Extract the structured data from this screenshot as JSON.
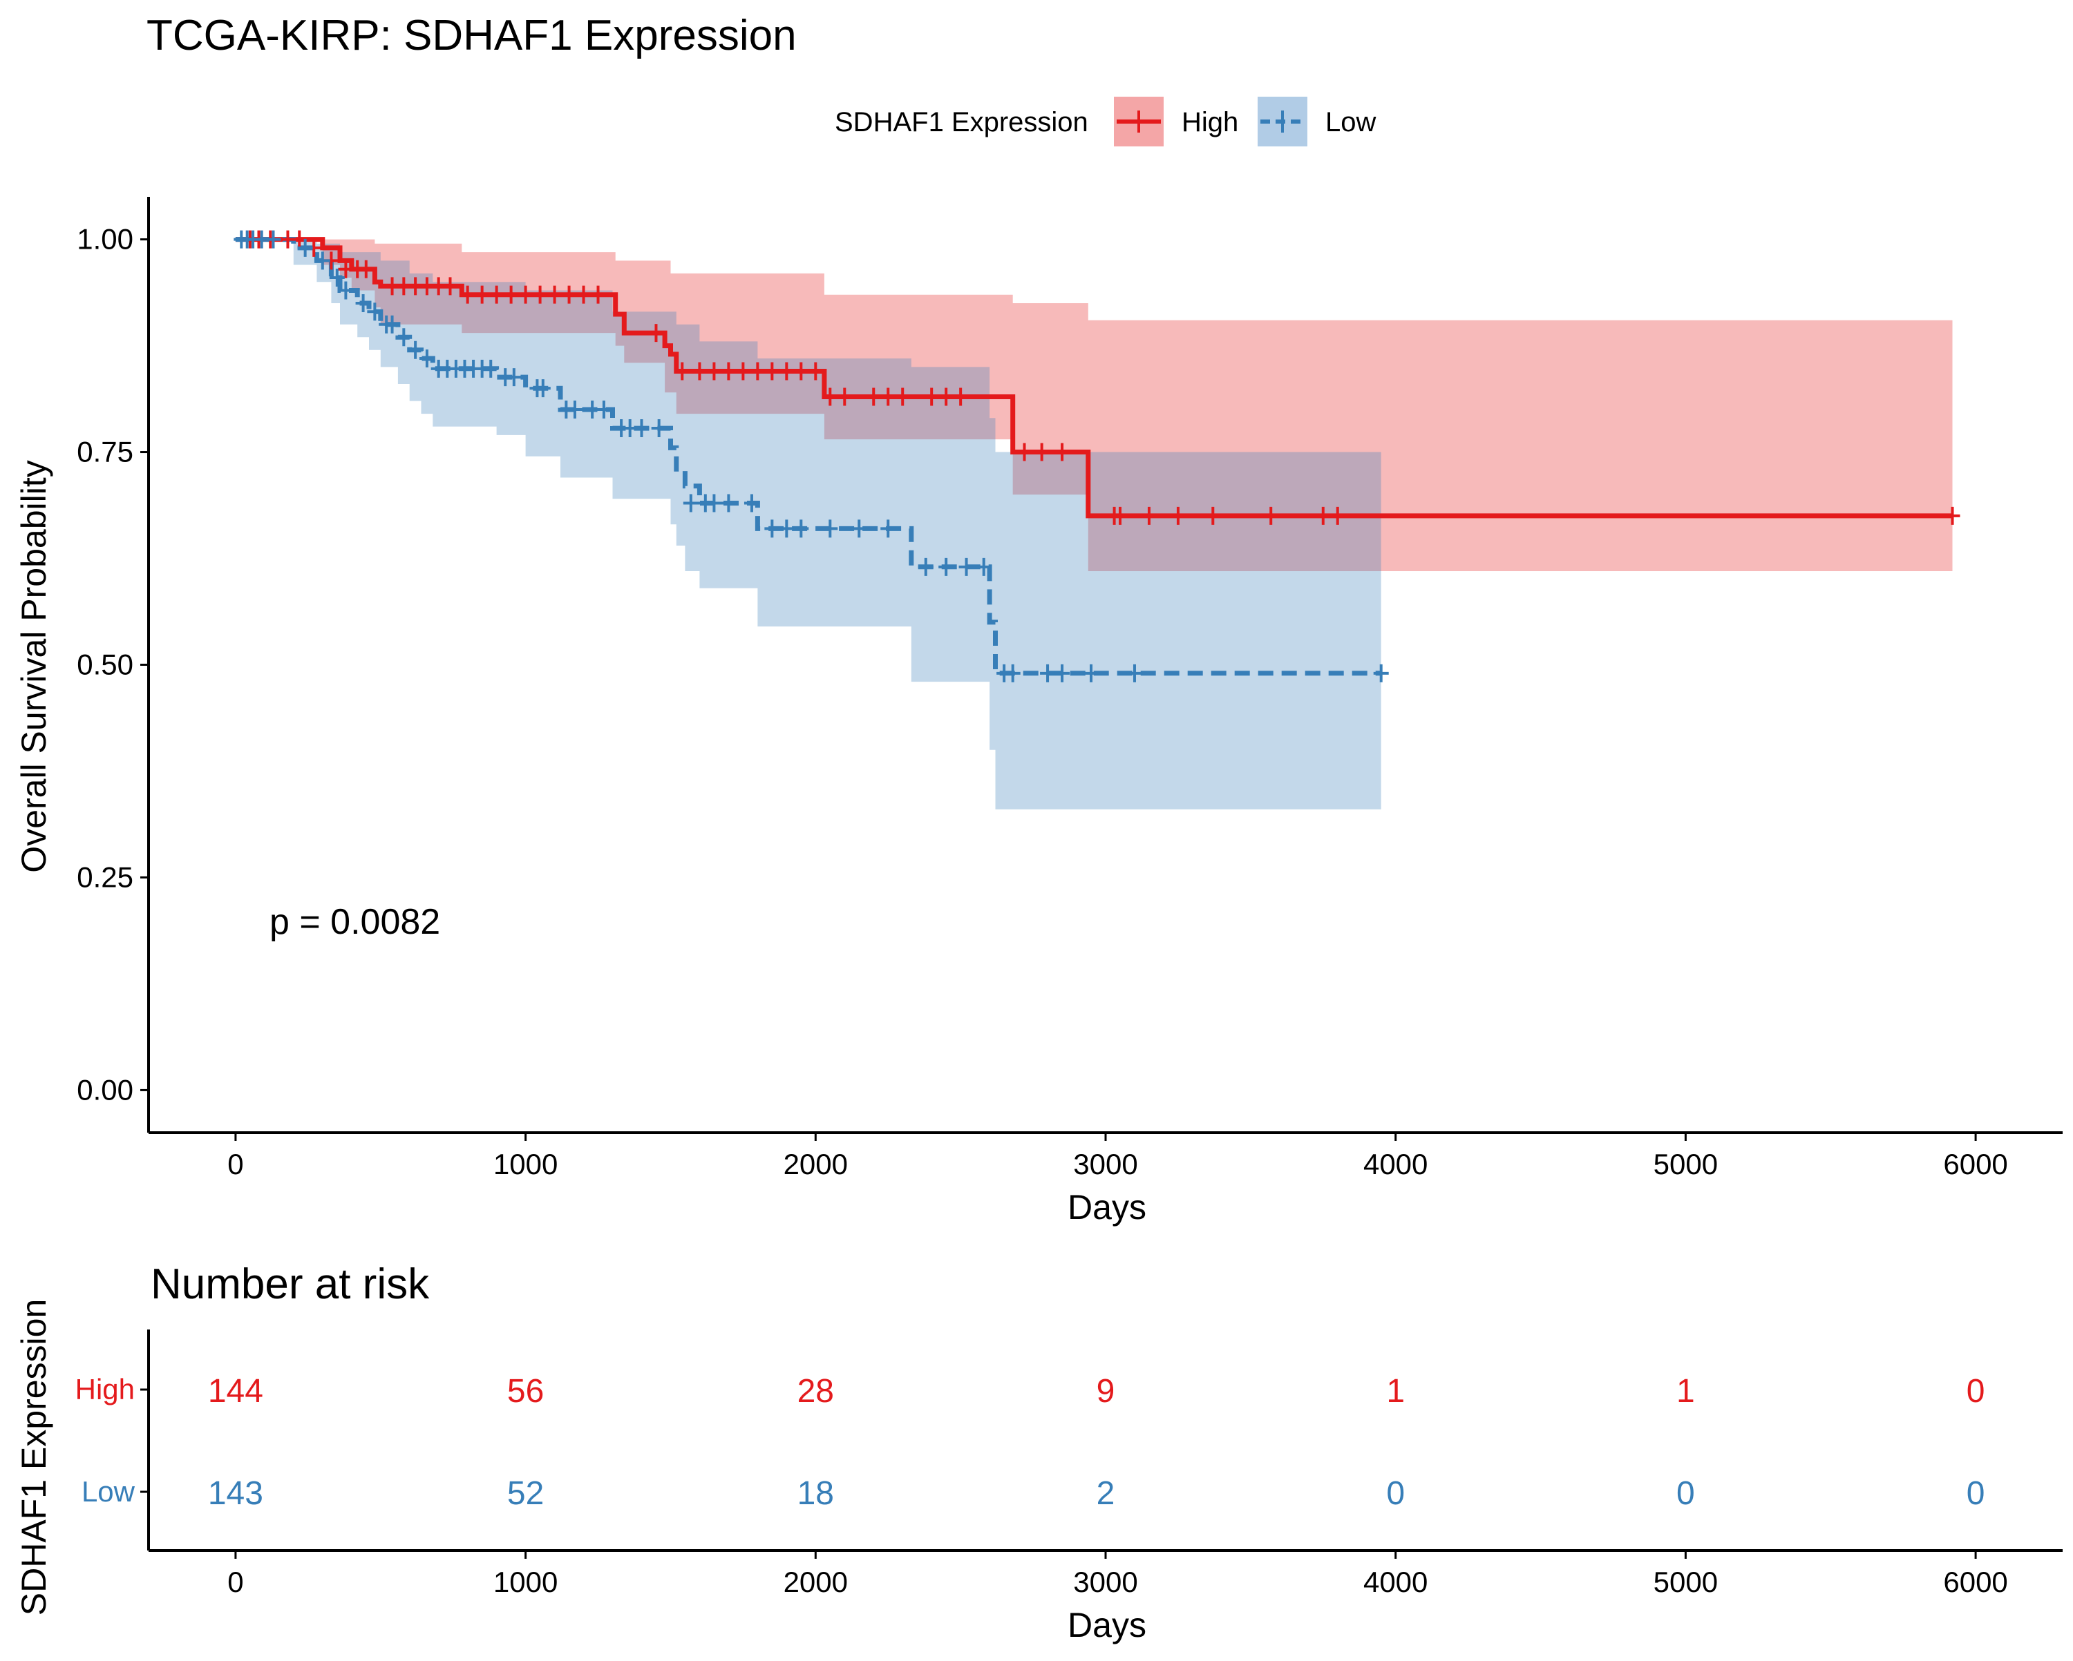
{
  "title": "TCGA-KIRP: SDHAF1 Expression",
  "legend": {
    "title": "SDHAF1 Expression",
    "placement": "top",
    "items": [
      {
        "label": "High",
        "color": "#E41A1C",
        "fill": "#F4A6A7",
        "line": "solid"
      },
      {
        "label": "Low",
        "color": "#377EB8",
        "fill": "#B1CCE6",
        "line": "dashed"
      }
    ]
  },
  "p_value_text": "p = 0.0082",
  "chart_data": {
    "type": "line",
    "subtype": "kaplan-meier",
    "title": "TCGA-KIRP: SDHAF1 Expression",
    "xlabel": "Days",
    "ylabel": "Overall Survival Probability",
    "xlim": [
      -300,
      6300
    ],
    "ylim": [
      -0.05,
      1.05
    ],
    "xticks": [
      0,
      1000,
      2000,
      3000,
      4000,
      5000,
      6000
    ],
    "xtick_labels": [
      "0",
      "1000",
      "2000",
      "3000",
      "4000",
      "5000",
      "6000"
    ],
    "yticks": [
      0,
      0.25,
      0.5,
      0.75,
      1.0
    ],
    "ytick_labels": [
      "0.00",
      "0.25",
      "0.50",
      "0.75",
      "1.00"
    ],
    "grid": false,
    "series": [
      {
        "name": "High",
        "color": "#E41A1C",
        "line": "solid",
        "steps": [
          [
            0,
            1.0
          ],
          [
            300,
            0.99
          ],
          [
            360,
            0.975
          ],
          [
            400,
            0.965
          ],
          [
            480,
            0.95
          ],
          [
            500,
            0.945
          ],
          [
            780,
            0.935
          ],
          [
            1310,
            0.912
          ],
          [
            1340,
            0.89
          ],
          [
            1480,
            0.875
          ],
          [
            1500,
            0.865
          ],
          [
            1520,
            0.845
          ],
          [
            2030,
            0.815
          ],
          [
            2680,
            0.75
          ],
          [
            2940,
            0.675
          ],
          [
            5920,
            0.675
          ]
        ],
        "upper": [
          [
            0,
            1.0
          ],
          [
            300,
            1.0
          ],
          [
            480,
            0.995
          ],
          [
            780,
            0.985
          ],
          [
            1310,
            0.975
          ],
          [
            1500,
            0.96
          ],
          [
            2030,
            0.935
          ],
          [
            2680,
            0.925
          ],
          [
            2940,
            0.905
          ],
          [
            5920,
            0.905
          ]
        ],
        "lower": [
          [
            0,
            1.0
          ],
          [
            300,
            0.97
          ],
          [
            360,
            0.955
          ],
          [
            400,
            0.94
          ],
          [
            480,
            0.92
          ],
          [
            500,
            0.9
          ],
          [
            780,
            0.89
          ],
          [
            1310,
            0.875
          ],
          [
            1340,
            0.855
          ],
          [
            1480,
            0.82
          ],
          [
            1520,
            0.795
          ],
          [
            2030,
            0.765
          ],
          [
            2680,
            0.7
          ],
          [
            2940,
            0.61
          ],
          [
            5920,
            0.505
          ]
        ],
        "censors": [
          [
            50,
            1.0
          ],
          [
            80,
            1.0
          ],
          [
            120,
            1.0
          ],
          [
            180,
            1.0
          ],
          [
            220,
            1.0
          ],
          [
            270,
            0.99
          ],
          [
            330,
            0.975
          ],
          [
            380,
            0.965
          ],
          [
            420,
            0.965
          ],
          [
            450,
            0.965
          ],
          [
            540,
            0.945
          ],
          [
            580,
            0.945
          ],
          [
            620,
            0.945
          ],
          [
            660,
            0.945
          ],
          [
            700,
            0.945
          ],
          [
            740,
            0.945
          ],
          [
            800,
            0.935
          ],
          [
            850,
            0.935
          ],
          [
            900,
            0.935
          ],
          [
            950,
            0.935
          ],
          [
            1000,
            0.935
          ],
          [
            1050,
            0.935
          ],
          [
            1100,
            0.935
          ],
          [
            1150,
            0.935
          ],
          [
            1200,
            0.935
          ],
          [
            1250,
            0.935
          ],
          [
            1450,
            0.89
          ],
          [
            1540,
            0.845
          ],
          [
            1600,
            0.845
          ],
          [
            1650,
            0.845
          ],
          [
            1700,
            0.845
          ],
          [
            1750,
            0.845
          ],
          [
            1800,
            0.845
          ],
          [
            1850,
            0.845
          ],
          [
            1900,
            0.845
          ],
          [
            1950,
            0.845
          ],
          [
            2000,
            0.845
          ],
          [
            2050,
            0.815
          ],
          [
            2100,
            0.815
          ],
          [
            2200,
            0.815
          ],
          [
            2250,
            0.815
          ],
          [
            2300,
            0.815
          ],
          [
            2400,
            0.815
          ],
          [
            2450,
            0.815
          ],
          [
            2500,
            0.815
          ],
          [
            2720,
            0.75
          ],
          [
            2780,
            0.75
          ],
          [
            2850,
            0.75
          ],
          [
            3030,
            0.675
          ],
          [
            3050,
            0.675
          ],
          [
            3150,
            0.675
          ],
          [
            3250,
            0.675
          ],
          [
            3370,
            0.675
          ],
          [
            3570,
            0.675
          ],
          [
            3750,
            0.675
          ],
          [
            3800,
            0.675
          ],
          [
            5920,
            0.675
          ]
        ]
      },
      {
        "name": "Low",
        "color": "#377EB8",
        "line": "dashed",
        "steps": [
          [
            0,
            1.0
          ],
          [
            200,
            0.99
          ],
          [
            280,
            0.975
          ],
          [
            330,
            0.955
          ],
          [
            360,
            0.94
          ],
          [
            420,
            0.925
          ],
          [
            460,
            0.915
          ],
          [
            500,
            0.9
          ],
          [
            560,
            0.885
          ],
          [
            600,
            0.87
          ],
          [
            640,
            0.86
          ],
          [
            680,
            0.848
          ],
          [
            900,
            0.838
          ],
          [
            1000,
            0.825
          ],
          [
            1120,
            0.8
          ],
          [
            1300,
            0.778
          ],
          [
            1500,
            0.755
          ],
          [
            1520,
            0.73
          ],
          [
            1550,
            0.71
          ],
          [
            1600,
            0.69
          ],
          [
            1800,
            0.66
          ],
          [
            2330,
            0.615
          ],
          [
            2600,
            0.55
          ],
          [
            2620,
            0.49
          ],
          [
            3950,
            0.49
          ]
        ],
        "upper": [
          [
            0,
            1.0
          ],
          [
            200,
            1.0
          ],
          [
            280,
            0.995
          ],
          [
            360,
            0.985
          ],
          [
            500,
            0.975
          ],
          [
            600,
            0.96
          ],
          [
            680,
            0.95
          ],
          [
            1000,
            0.94
          ],
          [
            1300,
            0.915
          ],
          [
            1520,
            0.9
          ],
          [
            1600,
            0.88
          ],
          [
            1800,
            0.86
          ],
          [
            2330,
            0.85
          ],
          [
            2600,
            0.79
          ],
          [
            2620,
            0.75
          ],
          [
            3950,
            0.72
          ]
        ],
        "lower": [
          [
            0,
            1.0
          ],
          [
            200,
            0.97
          ],
          [
            280,
            0.95
          ],
          [
            330,
            0.925
          ],
          [
            360,
            0.9
          ],
          [
            420,
            0.885
          ],
          [
            460,
            0.87
          ],
          [
            500,
            0.85
          ],
          [
            560,
            0.83
          ],
          [
            600,
            0.81
          ],
          [
            640,
            0.795
          ],
          [
            680,
            0.78
          ],
          [
            900,
            0.77
          ],
          [
            1000,
            0.745
          ],
          [
            1120,
            0.72
          ],
          [
            1300,
            0.695
          ],
          [
            1500,
            0.665
          ],
          [
            1520,
            0.64
          ],
          [
            1550,
            0.61
          ],
          [
            1600,
            0.59
          ],
          [
            1800,
            0.545
          ],
          [
            2330,
            0.48
          ],
          [
            2600,
            0.4
          ],
          [
            2620,
            0.33
          ],
          [
            3950,
            0.33
          ]
        ],
        "censors": [
          [
            20,
            1.0
          ],
          [
            40,
            1.0
          ],
          [
            60,
            1.0
          ],
          [
            90,
            1.0
          ],
          [
            130,
            1.0
          ],
          [
            240,
            0.99
          ],
          [
            300,
            0.975
          ],
          [
            350,
            0.955
          ],
          [
            380,
            0.94
          ],
          [
            440,
            0.925
          ],
          [
            480,
            0.915
          ],
          [
            520,
            0.9
          ],
          [
            540,
            0.9
          ],
          [
            580,
            0.885
          ],
          [
            620,
            0.87
          ],
          [
            660,
            0.86
          ],
          [
            700,
            0.848
          ],
          [
            730,
            0.848
          ],
          [
            760,
            0.848
          ],
          [
            790,
            0.848
          ],
          [
            820,
            0.848
          ],
          [
            850,
            0.848
          ],
          [
            880,
            0.848
          ],
          [
            930,
            0.838
          ],
          [
            960,
            0.838
          ],
          [
            1040,
            0.825
          ],
          [
            1060,
            0.825
          ],
          [
            1140,
            0.8
          ],
          [
            1170,
            0.8
          ],
          [
            1230,
            0.8
          ],
          [
            1270,
            0.8
          ],
          [
            1330,
            0.778
          ],
          [
            1360,
            0.778
          ],
          [
            1400,
            0.778
          ],
          [
            1460,
            0.778
          ],
          [
            1570,
            0.69
          ],
          [
            1620,
            0.69
          ],
          [
            1650,
            0.69
          ],
          [
            1700,
            0.69
          ],
          [
            1780,
            0.69
          ],
          [
            1850,
            0.66
          ],
          [
            1900,
            0.66
          ],
          [
            1950,
            0.66
          ],
          [
            2050,
            0.66
          ],
          [
            2150,
            0.66
          ],
          [
            2250,
            0.66
          ],
          [
            2380,
            0.615
          ],
          [
            2450,
            0.615
          ],
          [
            2520,
            0.615
          ],
          [
            2580,
            0.615
          ],
          [
            2650,
            0.49
          ],
          [
            2680,
            0.49
          ],
          [
            2800,
            0.49
          ],
          [
            2850,
            0.49
          ],
          [
            2950,
            0.49
          ],
          [
            3100,
            0.49
          ],
          [
            3950,
            0.49
          ]
        ]
      }
    ]
  },
  "risk_table": {
    "title": "Number at risk",
    "ylabel": "SDHAF1 Expression",
    "xlabel": "Days",
    "times": [
      0,
      1000,
      2000,
      3000,
      4000,
      5000,
      6000
    ],
    "time_labels": [
      "0",
      "1000",
      "2000",
      "3000",
      "4000",
      "5000",
      "6000"
    ],
    "rows": [
      {
        "label": "High",
        "color": "#E41A1C",
        "counts": [
          "144",
          "56",
          "28",
          "9",
          "1",
          "1",
          "0"
        ]
      },
      {
        "label": "Low",
        "color": "#377EB8",
        "counts": [
          "143",
          "52",
          "18",
          "2",
          "0",
          "0",
          "0"
        ]
      }
    ]
  }
}
